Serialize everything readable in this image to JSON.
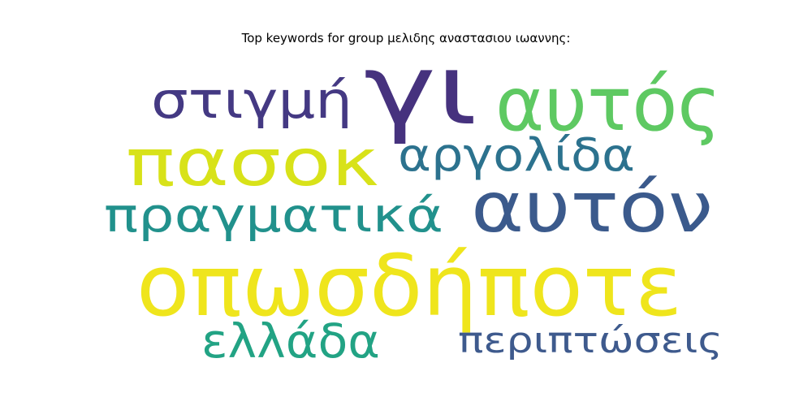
{
  "chart_data": {
    "type": "wordcloud",
    "title": "Top keywords for group μελιδης αναστασιου ιωαννης:",
    "words": [
      {
        "text": "γι",
        "color": "#46327e",
        "rank": 1
      },
      {
        "text": "στιγμή",
        "color": "#443983",
        "rank": 2
      },
      {
        "text": "αυτός",
        "color": "#5ec962",
        "rank": 3
      },
      {
        "text": "πασοκ",
        "color": "#d8e219",
        "rank": 4
      },
      {
        "text": "αργολίδα",
        "color": "#2c728e",
        "rank": 5
      },
      {
        "text": "αυτόν",
        "color": "#3b5a8c",
        "rank": 6
      },
      {
        "text": "πραγματικά",
        "color": "#21918c",
        "rank": 7
      },
      {
        "text": "οπωσδήποτε",
        "color": "#efe51c",
        "rank": 8
      },
      {
        "text": "ελλάδα",
        "color": "#22a384",
        "rank": 9
      },
      {
        "text": "περιπτώσεις",
        "color": "#3e5a8d",
        "rank": 10
      }
    ]
  }
}
